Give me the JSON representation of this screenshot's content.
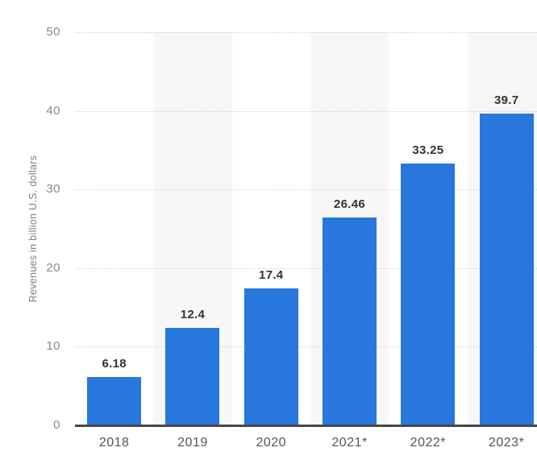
{
  "chart_data": {
    "type": "bar",
    "title": "",
    "categories": [
      "2018",
      "2019",
      "2020",
      "2021*",
      "2022*",
      "2023*"
    ],
    "values": [
      6.18,
      12.4,
      17.4,
      26.46,
      33.25,
      39.7
    ],
    "value_labels": [
      "6.18",
      "12.4",
      "17.4",
      "26.46",
      "33.25",
      "39.7"
    ],
    "xlabel": "",
    "ylabel": "Revenues in billion U.S. dollars",
    "ylim": [
      0,
      50
    ],
    "ytick_step": 10,
    "ytick_labels": [
      "0",
      "10",
      "20",
      "30",
      "40",
      "50"
    ],
    "grid": "horizontal-dotted",
    "legend": "none",
    "shaded_column_indexes": [
      1,
      3,
      5
    ],
    "colors": {
      "bar": "#2777dc",
      "column_band": "#f7f7f7",
      "gridline": "#d0d0d0",
      "axis_line": "#474747",
      "ytick_label": "#888888",
      "xtick_label": "#555555",
      "value_label": "#333333",
      "ylabel": "#7e7e7e",
      "background": "#ffffff"
    }
  }
}
